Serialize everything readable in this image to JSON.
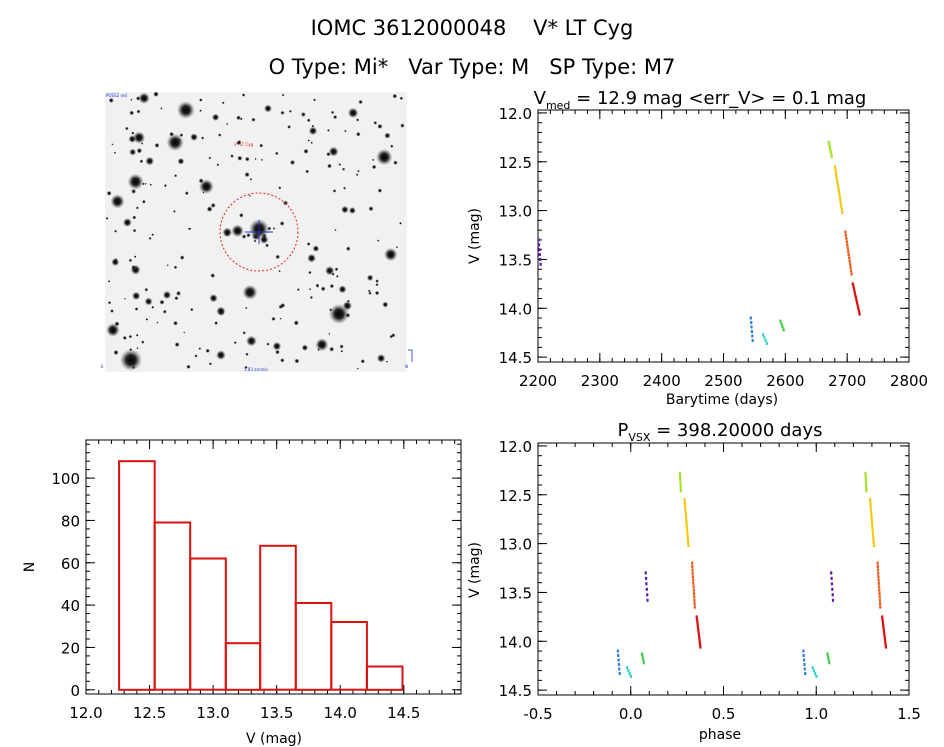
{
  "header": {
    "line1": "IOMC 3612000048    V* LT Cyg",
    "line2": "O Type: Mi*   Var Type: M   SP Type: M7"
  },
  "finder": {
    "top_left_label": "POSS2 red",
    "target_label": "V* LT Cyg",
    "bottom_label": "1.83 arcmin",
    "corner_labels": [
      "N",
      "E"
    ]
  },
  "chart_data": [
    {
      "id": "lightcurve",
      "type": "scatter",
      "title_main": "V",
      "title_sub": "med",
      "title_rest": " = 12.9 mag <err_V> = 0.1 mag",
      "xlabel": "Barytime (days)",
      "ylabel": "V (mag)",
      "xlim": [
        2200,
        2800
      ],
      "ylim": [
        14.55,
        11.97
      ],
      "xticks": [
        "2200",
        "2300",
        "2400",
        "2500",
        "2600",
        "2700",
        "2800"
      ],
      "xtick_values": [
        2200,
        2300,
        2400,
        2500,
        2600,
        2700,
        2800
      ],
      "yticks": [
        "12.0",
        "12.5",
        "13.0",
        "13.5",
        "14.0",
        "14.5"
      ],
      "ytick_values": [
        12.0,
        12.5,
        13.0,
        13.5,
        14.0,
        14.5
      ],
      "series": [
        {
          "name": "purple",
          "color": "#5a1aa8",
          "x_start": 2201,
          "x_end": 2204,
          "y_start": 13.3,
          "y_end": 13.55,
          "n": 6
        },
        {
          "name": "blue",
          "color": "#2f7fd6",
          "x_start": 2544,
          "x_end": 2547,
          "y_start": 14.1,
          "y_end": 14.33,
          "n": 6
        },
        {
          "name": "cyan",
          "color": "#33d3c8",
          "x_start": 2564,
          "x_end": 2570,
          "y_start": 14.27,
          "y_end": 14.36,
          "n": 4
        },
        {
          "name": "green",
          "color": "#40cc40",
          "x_start": 2592,
          "x_end": 2597,
          "y_start": 14.13,
          "y_end": 14.22,
          "n": 4
        },
        {
          "name": "yellowgreen",
          "color": "#a6e22e",
          "x_start": 2670,
          "x_end": 2675,
          "y_start": 12.3,
          "y_end": 12.45,
          "n": 8
        },
        {
          "name": "gold",
          "color": "#f2c80f",
          "x_start": 2680,
          "x_end": 2692,
          "y_start": 12.55,
          "y_end": 13.02,
          "n": 16
        },
        {
          "name": "orange",
          "color": "#ee5a19",
          "x_start": 2697,
          "x_end": 2707,
          "y_start": 13.22,
          "y_end": 13.65,
          "n": 14
        },
        {
          "name": "red",
          "color": "#dd1010",
          "x_start": 2709,
          "x_end": 2720,
          "y_start": 13.75,
          "y_end": 14.06,
          "n": 14
        }
      ]
    },
    {
      "id": "histogram",
      "type": "bar",
      "xlabel": "V (mag)",
      "ylabel": "N",
      "xlim": [
        12.0,
        14.95
      ],
      "ylim": [
        -2,
        118
      ],
      "xticks": [
        "12.0",
        "12.5",
        "13.0",
        "13.5",
        "14.0",
        "14.5"
      ],
      "xtick_values": [
        12.0,
        12.5,
        13.0,
        13.5,
        14.0,
        14.5
      ],
      "yticks": [
        "0",
        "20",
        "40",
        "60",
        "80",
        "100"
      ],
      "ytick_values": [
        0,
        20,
        40,
        60,
        80,
        100
      ],
      "bin_edges": [
        12.26,
        12.54,
        12.82,
        13.1,
        13.37,
        13.65,
        13.93,
        14.21,
        14.49
      ],
      "values": [
        108,
        79,
        62,
        22,
        68,
        41,
        32,
        11
      ],
      "color": "#dd1010"
    },
    {
      "id": "phased",
      "type": "scatter",
      "title_main": "P",
      "title_sub": "VSX",
      "title_rest": " = 398.20000 days",
      "xlabel": "phase",
      "ylabel": "V (mag)",
      "xlim": [
        -0.5,
        1.5
      ],
      "ylim": [
        14.55,
        11.97
      ],
      "xticks": [
        "-0.5",
        "0.0",
        "0.5",
        "1.0",
        "1.5"
      ],
      "xtick_values": [
        -0.5,
        0.0,
        0.5,
        1.0,
        1.5
      ],
      "yticks": [
        "12.0",
        "12.5",
        "13.0",
        "13.5",
        "14.0",
        "14.5"
      ],
      "ytick_values": [
        12.0,
        12.5,
        13.0,
        13.5,
        14.0,
        14.5
      ],
      "series": [
        {
          "name": "purple",
          "color": "#5a1aa8",
          "x_start": 0.08,
          "x_end": 0.09,
          "y_start": 13.3,
          "y_end": 13.58,
          "n": 6
        },
        {
          "name": "blue",
          "color": "#2f7fd6",
          "x_start": -0.07,
          "x_end": -0.06,
          "y_start": 14.1,
          "y_end": 14.33,
          "n": 6
        },
        {
          "name": "cyan",
          "color": "#33d3c8",
          "x_start": -0.02,
          "x_end": 0.0,
          "y_start": 14.27,
          "y_end": 14.36,
          "n": 4
        },
        {
          "name": "green",
          "color": "#40cc40",
          "x_start": 0.06,
          "x_end": 0.07,
          "y_start": 14.13,
          "y_end": 14.22,
          "n": 4
        },
        {
          "name": "yellowgreen",
          "color": "#a6e22e",
          "x_start": 0.265,
          "x_end": 0.27,
          "y_start": 12.28,
          "y_end": 12.46,
          "n": 8
        },
        {
          "name": "gold",
          "color": "#f2c80f",
          "x_start": 0.29,
          "x_end": 0.31,
          "y_start": 12.55,
          "y_end": 13.02,
          "n": 16
        },
        {
          "name": "orange",
          "color": "#ee5a19",
          "x_start": 0.33,
          "x_end": 0.345,
          "y_start": 13.2,
          "y_end": 13.65,
          "n": 14
        },
        {
          "name": "red",
          "color": "#dd1010",
          "x_start": 0.355,
          "x_end": 0.375,
          "y_start": 13.75,
          "y_end": 14.06,
          "n": 14
        }
      ],
      "repeat_phase_offset": 1.0
    }
  ]
}
